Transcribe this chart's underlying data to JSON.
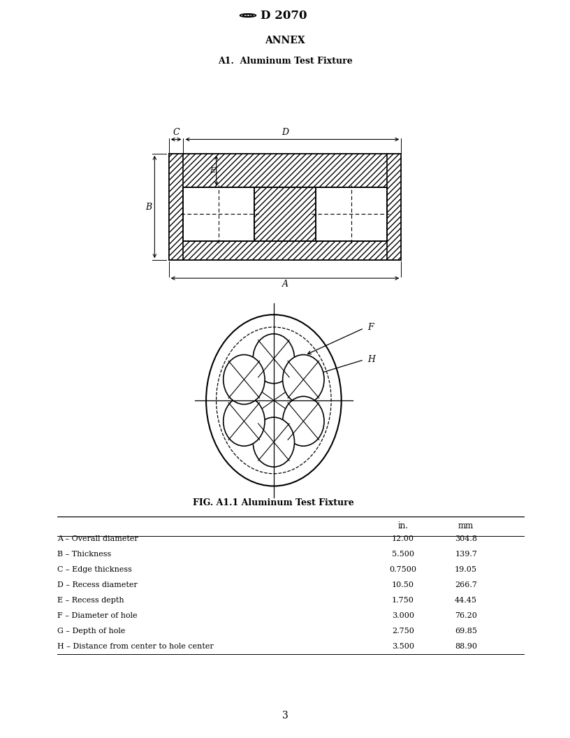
{
  "title": "D 2070",
  "annex_title": "ANNEX",
  "section_title": "A1.  Aluminum Test Fixture",
  "fig_caption": "FIG. A1.1 Aluminum Test Fixture",
  "page_number": "3",
  "table_headers": [
    "",
    "in.",
    "mm"
  ],
  "table_rows": [
    [
      "A – Overall diameter",
      "12.00",
      "304.8"
    ],
    [
      "B – Thickness",
      "5.500",
      "139.7"
    ],
    [
      "C – Edge thickness",
      "0.7500",
      "19.05"
    ],
    [
      "D – Recess diameter",
      "10.50",
      "266.7"
    ],
    [
      "E – Recess depth",
      "1.750",
      "44.45"
    ],
    [
      "F – Diameter of hole",
      "3.000",
      "76.20"
    ],
    [
      "G – Depth of hole",
      "2.750",
      "69.85"
    ],
    [
      "H – Distance from center to hole center",
      "3.500",
      "88.90"
    ]
  ],
  "bg_color": "#ffffff",
  "line_color": "#000000"
}
